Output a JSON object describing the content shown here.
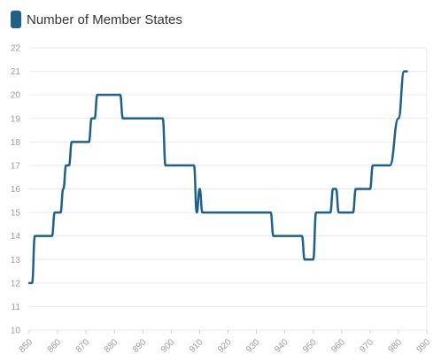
{
  "chart_data": {
    "type": "line",
    "title": "",
    "xlabel": "",
    "ylabel": "",
    "xlim": [
      850,
      990
    ],
    "ylim": [
      10,
      22
    ],
    "x_ticks": [
      "850",
      "860",
      "870",
      "880",
      "890",
      "900",
      "910",
      "920",
      "930",
      "940",
      "950",
      "960",
      "970",
      "980",
      "990"
    ],
    "y_ticks": [
      "10",
      "11",
      "12",
      "13",
      "14",
      "15",
      "16",
      "17",
      "18",
      "19",
      "20",
      "21",
      "22"
    ],
    "grid": true,
    "legend_position": "top-left",
    "series": [
      {
        "name": "Number of Member States",
        "color": "#1f5f8b",
        "x": [
          850,
          851,
          852,
          858,
          859,
          861,
          862,
          863,
          864,
          865,
          871,
          872,
          873,
          874,
          875,
          882,
          883,
          884,
          885,
          897,
          898,
          899,
          908,
          909,
          910,
          911,
          935,
          936,
          937,
          946,
          947,
          950,
          951,
          952,
          956,
          957,
          958,
          959,
          964,
          965,
          966,
          970,
          971,
          972,
          973,
          977,
          980,
          982,
          983
        ],
        "y": [
          12,
          12,
          14,
          14,
          15,
          15,
          16,
          17,
          17,
          18,
          18,
          19,
          19,
          20,
          20,
          20,
          19,
          19,
          19,
          19,
          17,
          17,
          17,
          15,
          16,
          15,
          15,
          14,
          14,
          14,
          13,
          13,
          15,
          15,
          15,
          16,
          16,
          15,
          15,
          16,
          16,
          16,
          17,
          17,
          17,
          17,
          19,
          21,
          21
        ]
      }
    ]
  }
}
